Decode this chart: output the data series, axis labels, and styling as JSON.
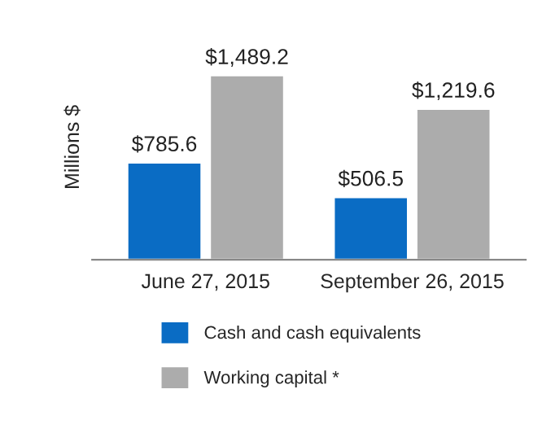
{
  "chart_data": {
    "type": "bar",
    "ylabel": "Millions $",
    "categories": [
      "June 27, 2015",
      "September 26, 2015"
    ],
    "series": [
      {
        "name": "Cash and cash equivalents",
        "color": "#0a6cc4",
        "values": [
          785.6,
          506.5
        ],
        "value_labels": [
          "$785.6",
          "$506.5"
        ]
      },
      {
        "name": "Working capital *",
        "color": "#acacac",
        "values": [
          1489.2,
          1219.6
        ],
        "value_labels": [
          "$1,489.2",
          "$1,219.6"
        ]
      }
    ],
    "legend": "bottom",
    "grid": false
  }
}
